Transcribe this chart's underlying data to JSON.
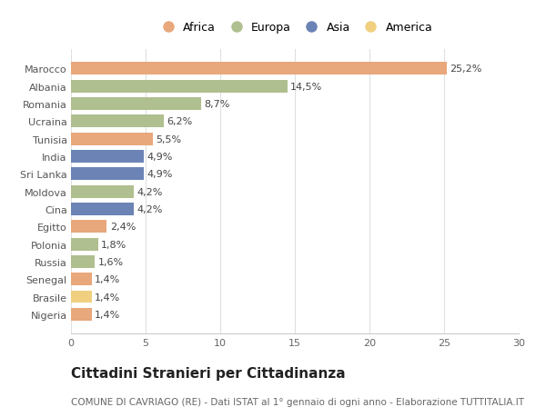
{
  "countries": [
    "Marocco",
    "Albania",
    "Romania",
    "Ucraina",
    "Tunisia",
    "India",
    "Sri Lanka",
    "Moldova",
    "Cina",
    "Egitto",
    "Polonia",
    "Russia",
    "Senegal",
    "Brasile",
    "Nigeria"
  ],
  "values": [
    25.2,
    14.5,
    8.7,
    6.2,
    5.5,
    4.9,
    4.9,
    4.2,
    4.2,
    2.4,
    1.8,
    1.6,
    1.4,
    1.4,
    1.4
  ],
  "labels": [
    "25,2%",
    "14,5%",
    "8,7%",
    "6,2%",
    "5,5%",
    "4,9%",
    "4,9%",
    "4,2%",
    "4,2%",
    "2,4%",
    "1,8%",
    "1,6%",
    "1,4%",
    "1,4%",
    "1,4%"
  ],
  "continents": [
    "Africa",
    "Europa",
    "Europa",
    "Europa",
    "Africa",
    "Asia",
    "Asia",
    "Europa",
    "Asia",
    "Africa",
    "Europa",
    "Europa",
    "Africa",
    "America",
    "Africa"
  ],
  "colors": {
    "Africa": "#E8A87C",
    "Europa": "#AFBF8F",
    "Asia": "#6B83B5",
    "America": "#F0D080"
  },
  "legend_order": [
    "Africa",
    "Europa",
    "Asia",
    "America"
  ],
  "xlim": [
    0,
    30
  ],
  "xticks": [
    0,
    5,
    10,
    15,
    20,
    25,
    30
  ],
  "title": "Cittadini Stranieri per Cittadinanza",
  "subtitle": "COMUNE DI CAVRIAGO (RE) - Dati ISTAT al 1° gennaio di ogni anno - Elaborazione TUTTITALIA.IT",
  "background_color": "#ffffff",
  "bar_height": 0.72,
  "label_fontsize": 8,
  "ytick_fontsize": 8,
  "xtick_fontsize": 8,
  "title_fontsize": 11,
  "subtitle_fontsize": 7.5,
  "legend_fontsize": 9
}
